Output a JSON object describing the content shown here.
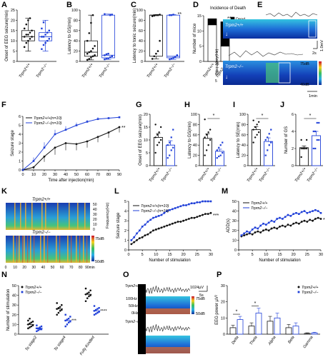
{
  "panel_letters": [
    "A",
    "B",
    "C",
    "D",
    "E",
    "F",
    "G",
    "H",
    "I",
    "J",
    "K",
    "L",
    "M",
    "N",
    "O",
    "P"
  ],
  "colors": {
    "wt": "#111111",
    "ko": "#1f3fd8"
  },
  "groups": [
    "Trpm2+/+",
    "Trpm2−/−"
  ],
  "chart_data": [
    {
      "id": "A",
      "type": "box",
      "ylabel": "Onset of EEG seizure(min)",
      "ylim": [
        0,
        25
      ],
      "yticks": [
        0,
        5,
        10,
        15,
        20,
        25
      ],
      "categories": [
        "Trpm2+/+",
        "Trpm2−/−"
      ],
      "boxes": [
        {
          "min": 5,
          "q1": 10,
          "median": 12,
          "q3": 15,
          "max": 21
        },
        {
          "min": 5,
          "q1": 10,
          "median": 12,
          "q3": 14,
          "max": 20
        }
      ],
      "points": [
        [
          7,
          9,
          10,
          11,
          12,
          12,
          13,
          13,
          14,
          15,
          16,
          18,
          20,
          21
        ],
        [
          6,
          8,
          9,
          10,
          11,
          12,
          12,
          13,
          14,
          15,
          16,
          19
        ]
      ]
    },
    {
      "id": "B",
      "type": "box",
      "ylabel": "Latency to GS(min)",
      "ylim": [
        0,
        100
      ],
      "yticks": [
        0,
        20,
        40,
        60,
        80,
        100
      ],
      "categories": [
        "Trpm2+/+",
        "Trpm2−/−"
      ],
      "boxes": [
        {
          "min": 3,
          "q1": 10,
          "median": 18,
          "q3": 40,
          "max": 90
        },
        {
          "min": 4,
          "q1": 7,
          "median": 12,
          "q3": 90,
          "max": 92
        }
      ],
      "points": [
        [
          3,
          5,
          8,
          10,
          12,
          15,
          18,
          20,
          25,
          30,
          40,
          55,
          75,
          90
        ],
        [
          4,
          5,
          6,
          8,
          10,
          12,
          14,
          15,
          90,
          91,
          92
        ]
      ]
    },
    {
      "id": "C",
      "type": "box",
      "ylabel": "Latency to tonic seizure(min)",
      "ylim": [
        0,
        100
      ],
      "yticks": [
        0,
        20,
        40,
        60,
        80,
        100
      ],
      "significance": "**",
      "categories": [
        "Trpm2+/+",
        "Trpm2−/−"
      ],
      "boxes": [
        {
          "min": 5,
          "q1": 10,
          "median": 90,
          "q3": 90,
          "max": 91
        },
        {
          "min": 4,
          "q1": 7,
          "median": 10,
          "q3": 90,
          "max": 91
        }
      ],
      "points": [
        [
          5,
          10,
          15,
          20,
          40,
          88,
          89,
          90,
          90,
          91
        ],
        [
          4,
          5,
          7,
          9,
          12,
          90,
          90,
          91
        ]
      ]
    },
    {
      "id": "D",
      "type": "stacked_bar",
      "title": "Incidence of Death",
      "ylabel": "Number of mice",
      "ylim": [
        0,
        15
      ],
      "yticks": [
        0,
        5,
        10,
        15
      ],
      "significance": "**",
      "categories": [
        "Trpm2+/+",
        "Trpm2−/−"
      ],
      "series": [
        {
          "name": "Survival",
          "values": [
            12,
            5
          ]
        },
        {
          "name": "Dead",
          "values": [
            2,
            8
          ]
        }
      ]
    },
    {
      "id": "F",
      "type": "line",
      "xlabel": "Time after injection(min)",
      "ylabel": "Seizure stage",
      "xlim": [
        0,
        90
      ],
      "ylim": [
        0,
        6
      ],
      "xticks": [
        0,
        10,
        20,
        30,
        40,
        50,
        60,
        70,
        80,
        90
      ],
      "yticks": [
        0,
        1,
        2,
        3,
        4,
        5,
        6
      ],
      "significance": "**",
      "x": [
        0,
        10,
        20,
        30,
        40,
        50,
        60,
        70,
        80,
        90
      ],
      "series": [
        {
          "name": "Trpm2+/+(n=10)",
          "group": "wt",
          "values": [
            0,
            0.3,
            1.5,
            2.5,
            3.0,
            2.9,
            3.2,
            3.7,
            4.2,
            4.8
          ],
          "err": [
            0,
            0.2,
            0.6,
            0.8,
            0.8,
            0.7,
            0.7,
            0.6,
            0.6,
            0.6
          ]
        },
        {
          "name": "Trpm2−/−(n=10)",
          "group": "ko",
          "values": [
            0,
            1.0,
            2.5,
            4.0,
            4.5,
            5.0,
            5.4,
            5.7,
            5.8,
            5.9
          ],
          "err": [
            0,
            0.4,
            0.6,
            0.5,
            0.4,
            0.3,
            0.2,
            0.2,
            0.1,
            0.1
          ]
        }
      ]
    },
    {
      "id": "G",
      "type": "bar",
      "ylabel": "Onset of EEG seizure(min)",
      "ylim": [
        0,
        20
      ],
      "yticks": [
        0,
        5,
        10,
        15,
        20
      ],
      "categories": [
        "Trpm2+/+",
        "Trpm2−/−"
      ],
      "values": [
        11,
        8
      ],
      "err": [
        1.5,
        1.7
      ],
      "points": [
        [
          5,
          8,
          9,
          10,
          11,
          12,
          13,
          15,
          16
        ],
        [
          3,
          4,
          6,
          7,
          8,
          9,
          11,
          14
        ]
      ]
    },
    {
      "id": "H",
      "type": "bar",
      "ylabel": "Latency to GS(min)",
      "ylim": [
        0,
        100
      ],
      "yticks": [
        0,
        20,
        40,
        60,
        80,
        100
      ],
      "significance": "*",
      "categories": [
        "Trpm2+/+",
        "Trpm2−/−"
      ],
      "values": [
        53,
        28
      ],
      "err": [
        9,
        4
      ],
      "points": [
        [
          20,
          30,
          40,
          50,
          55,
          60,
          65,
          70,
          90
        ],
        [
          15,
          18,
          20,
          25,
          30,
          35,
          40,
          45
        ]
      ]
    },
    {
      "id": "I",
      "type": "bar",
      "ylabel": "Latency to SE(min)",
      "ylim": [
        0,
        100
      ],
      "yticks": [
        0,
        20,
        40,
        60,
        80,
        100
      ],
      "significance": "*",
      "categories": [
        "Trpm2+/+",
        "Trpm2−/−"
      ],
      "values": [
        70,
        47
      ],
      "err": [
        6,
        7
      ],
      "points": [
        [
          45,
          55,
          60,
          65,
          70,
          75,
          80,
          85,
          88
        ],
        [
          20,
          30,
          40,
          45,
          50,
          55,
          62,
          70
        ]
      ]
    },
    {
      "id": "J",
      "type": "bar",
      "ylabel": "Number of GS",
      "ylim": [
        0,
        6
      ],
      "yticks": [
        0,
        2,
        4,
        6
      ],
      "significance": "*",
      "categories": [
        "Trpm2+/+",
        "Trpm2−/−"
      ],
      "values": [
        2.1,
        3.5
      ],
      "err": [
        0.2,
        0.5
      ],
      "points": [
        [
          1,
          2,
          2,
          2,
          2,
          2,
          2,
          3,
          3
        ],
        [
          2,
          2,
          3,
          3,
          4,
          4,
          5,
          5
        ]
      ]
    },
    {
      "id": "L",
      "type": "line",
      "xlabel": "Number of stimulation",
      "ylabel": "Seizure stage",
      "xlim": [
        0,
        30
      ],
      "ylim": [
        0,
        5
      ],
      "xticks": [
        0,
        5,
        10,
        15,
        20,
        25,
        30
      ],
      "yticks": [
        0,
        1,
        2,
        3,
        4,
        5
      ],
      "significance": "***",
      "x": [
        1,
        2,
        3,
        4,
        5,
        6,
        7,
        8,
        9,
        10,
        11,
        12,
        13,
        14,
        15,
        16,
        17,
        18,
        19,
        20,
        21,
        22,
        23,
        24,
        25,
        26,
        27,
        28,
        29,
        30
      ],
      "series": [
        {
          "name": "Trpm2+/+(n=10)",
          "group": "wt",
          "values": [
            0.6,
            0.8,
            1.0,
            1.2,
            1.3,
            1.5,
            1.6,
            1.8,
            2.0,
            2.1,
            2.2,
            2.3,
            2.4,
            2.5,
            2.6,
            2.7,
            2.8,
            2.9,
            2.9,
            3.0,
            3.1,
            3.2,
            3.3,
            3.3,
            3.4,
            3.5,
            3.6,
            3.7,
            3.7,
            3.8
          ]
        },
        {
          "name": "Trpm2−/−(n=10)",
          "group": "ko",
          "values": [
            1.0,
            1.3,
            1.7,
            2.0,
            2.4,
            2.6,
            2.9,
            3.1,
            3.3,
            3.4,
            3.5,
            3.6,
            3.8,
            4.0,
            4.1,
            4.2,
            4.3,
            4.4,
            4.5,
            4.6,
            4.6,
            4.7,
            4.8,
            4.8,
            4.9,
            4.9,
            5.0,
            5.0,
            5.0,
            5.0
          ]
        }
      ]
    },
    {
      "id": "M",
      "type": "line",
      "xlabel": "Number of stimulation",
      "ylabel": "ADD(s)",
      "xlim": [
        0,
        30
      ],
      "ylim": [
        0,
        50
      ],
      "xticks": [
        0,
        5,
        10,
        15,
        20,
        25,
        30
      ],
      "yticks": [
        0,
        10,
        20,
        30,
        40,
        50
      ],
      "significance": "*",
      "x": [
        1,
        2,
        3,
        4,
        5,
        6,
        7,
        8,
        9,
        10,
        11,
        12,
        13,
        14,
        15,
        16,
        17,
        18,
        19,
        20,
        21,
        22,
        23,
        24,
        25,
        26,
        27,
        28,
        29,
        30
      ],
      "series": [
        {
          "name": "Trpm2+/+",
          "group": "wt",
          "values": [
            14,
            15,
            16,
            17,
            16,
            18,
            19,
            18,
            20,
            21,
            20,
            22,
            23,
            22,
            24,
            25,
            24,
            26,
            25,
            27,
            28,
            27,
            29,
            30,
            29,
            31,
            30,
            32,
            33,
            32
          ]
        },
        {
          "name": "Trpm2−/−",
          "group": "ko",
          "values": [
            15,
            17,
            19,
            18,
            21,
            23,
            22,
            25,
            27,
            26,
            28,
            30,
            29,
            32,
            33,
            32,
            34,
            36,
            35,
            37,
            38,
            37,
            39,
            40,
            38,
            39,
            40,
            41,
            40,
            38
          ]
        }
      ]
    },
    {
      "id": "N",
      "type": "scatter",
      "ylabel": "Number of stimulation",
      "ylim": [
        0,
        50
      ],
      "yticks": [
        0,
        10,
        20,
        30,
        40,
        50
      ],
      "significance": [
        "",
        "***",
        "****"
      ],
      "categories": [
        "To stage2",
        "To stage4",
        "Fully Kindled"
      ],
      "series": [
        {
          "name": "Trpm2+/+",
          "group": "wt",
          "means": [
            10,
            26,
            41
          ],
          "points": [
            [
              6,
              7,
              8,
              9,
              10,
              11,
              12,
              13,
              14,
              16
            ],
            [
              20,
              22,
              24,
              25,
              26,
              27,
              28,
              30,
              32
            ],
            [
              34,
              37,
              39,
              40,
              41,
              42,
              43,
              45,
              47
            ]
          ]
        },
        {
          "name": "Trpm2−/−",
          "group": "ko",
          "means": [
            6,
            14,
            24
          ],
          "points": [
            [
              3,
              4,
              5,
              5,
              6,
              6,
              7,
              8,
              9
            ],
            [
              8,
              10,
              12,
              13,
              14,
              15,
              16,
              18,
              20
            ],
            [
              20,
              21,
              22,
              23,
              24,
              25,
              26,
              27,
              29
            ]
          ]
        }
      ]
    },
    {
      "id": "P",
      "type": "bar",
      "ylabel": "EEG power µV²",
      "ylim": [
        0,
        30
      ],
      "yticks": [
        0,
        10,
        20,
        30
      ],
      "categories": [
        "Delta",
        "Theta",
        "Alpha",
        "Beta",
        "Gamma"
      ],
      "significance": [
        "*",
        "*",
        "",
        "",
        ""
      ],
      "series": [
        {
          "name": "Trpm2+/+",
          "group": "wt",
          "values": [
            4,
            5,
            8,
            4,
            0.5
          ],
          "err": [
            1.5,
            2,
            3,
            2,
            0.3
          ]
        },
        {
          "name": "Trpm2−/−",
          "group": "ko",
          "values": [
            9,
            13,
            10,
            5,
            0.8
          ],
          "err": [
            2,
            3,
            3,
            2,
            0.4
          ]
        }
      ]
    }
  ],
  "panelE": {
    "label_wt": "Trpm2+/+",
    "label_ko": "Trpm2−/−",
    "scale_v": "1.0mV",
    "scale_t": "2s",
    "scale_min": "1min",
    "freq_label": "Frequency(Hz)",
    "yticks": [
      "25",
      "15",
      "5"
    ],
    "cbar_max": "75dB",
    "cbar_min": "40dB"
  },
  "panelK": {
    "label_wt": "Trpm2+/+",
    "label_ko": "Trpm2−/−",
    "freq_label": "Frequency(Hz)",
    "yticks": [
      "50",
      "40",
      "30",
      "20",
      "10",
      "0"
    ],
    "xticks": [
      "0",
      "10",
      "20",
      "30",
      "40",
      "50",
      "60",
      "70",
      "80",
      "90min"
    ],
    "cbar_max": "75dB",
    "cbar_min": "50dB"
  },
  "panelO": {
    "label_wt": "Trpm2+/+",
    "label_ko": "Trpm2−/−",
    "scale_v": "1024µV",
    "scale_t": "5s",
    "freq_ticks": [
      "100Hz",
      "50Hz",
      "0Hz"
    ],
    "cbar_max": "75dB",
    "cbar_min": "50dB"
  }
}
